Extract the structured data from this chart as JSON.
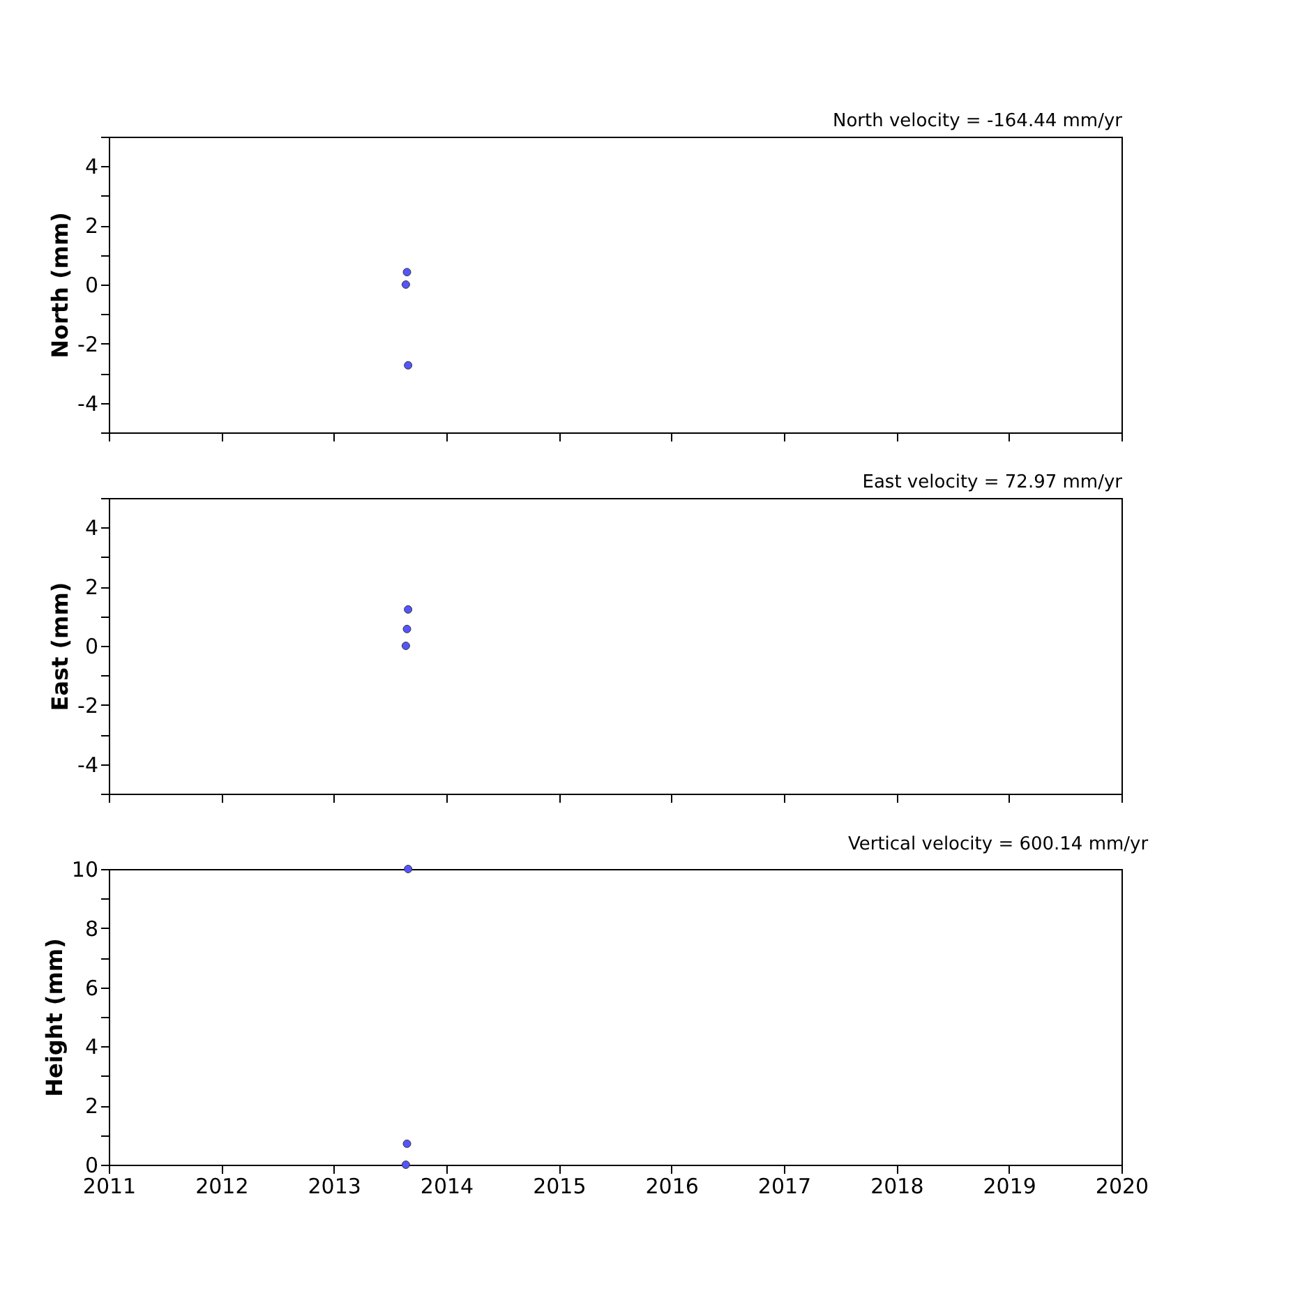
{
  "chart_data": [
    {
      "type": "scatter",
      "title": "North velocity = -164.44 mm/yr",
      "ylabel": "North (mm)",
      "x": [
        2013.65,
        2013.64,
        2013.66
      ],
      "series": [
        {
          "color": "#5555ff",
          "values": [
            0.42,
            0,
            -2.73
          ]
        }
      ],
      "xlim": [
        2011,
        2020
      ],
      "xticks": [
        2011,
        2012,
        2013,
        2014,
        2015,
        2016,
        2017,
        2018,
        2019,
        2020
      ],
      "ylim": [
        -5,
        5
      ],
      "yticks": [
        {
          "value": -5,
          "label": null
        },
        -4,
        {
          "value": -3,
          "label": null
        },
        -2,
        {
          "value": -1,
          "label": null
        },
        0,
        {
          "value": 1,
          "label": null
        },
        2,
        {
          "value": 3,
          "label": null
        },
        4,
        {
          "value": 5,
          "label": null
        }
      ],
      "tick_labels": "y",
      "grid": false,
      "marker": "circle"
    },
    {
      "type": "scatter",
      "title": "East velocity = 72.97 mm/yr",
      "ylabel": "East (mm)",
      "x": [
        2013.66,
        2013.65,
        2013.64
      ],
      "series": [
        {
          "color": "#5555ff",
          "values": [
            1.23,
            0.57,
            0
          ]
        }
      ],
      "xlim": [
        2011,
        2020
      ],
      "xticks": [
        2011,
        2012,
        2013,
        2014,
        2015,
        2016,
        2017,
        2018,
        2019,
        2020
      ],
      "ylim": [
        -5,
        5
      ],
      "yticks": [
        {
          "value": -5,
          "label": null
        },
        -4,
        {
          "value": -3,
          "label": null
        },
        -2,
        {
          "value": -1,
          "label": null
        },
        0,
        {
          "value": 1,
          "label": null
        },
        2,
        {
          "value": 3,
          "label": null
        },
        4,
        {
          "value": 5,
          "label": null
        }
      ],
      "tick_labels": "y",
      "grid": false,
      "marker": "circle"
    },
    {
      "type": "scatter",
      "title": "Vertical velocity = 600.14 mm/yr",
      "ylabel": "Height (mm)",
      "x": [
        2013.66,
        2013.65,
        2013.64
      ],
      "series": [
        {
          "color": "#5555ff",
          "values": [
            10,
            0.71,
            0
          ]
        }
      ],
      "xlim": [
        2011,
        2020
      ],
      "xticks": [
        2011,
        2012,
        2013,
        2014,
        2015,
        2016,
        2017,
        2018,
        2019,
        2020
      ],
      "ylim": [
        0,
        10
      ],
      "yticks": [
        0,
        {
          "value": 1,
          "label": null
        },
        2,
        {
          "value": 3,
          "label": null
        },
        4,
        {
          "value": 5,
          "label": null
        },
        6,
        {
          "value": 7,
          "label": null
        },
        8,
        {
          "value": 9,
          "label": null
        },
        10
      ],
      "grid": false,
      "marker": "circle"
    }
  ]
}
